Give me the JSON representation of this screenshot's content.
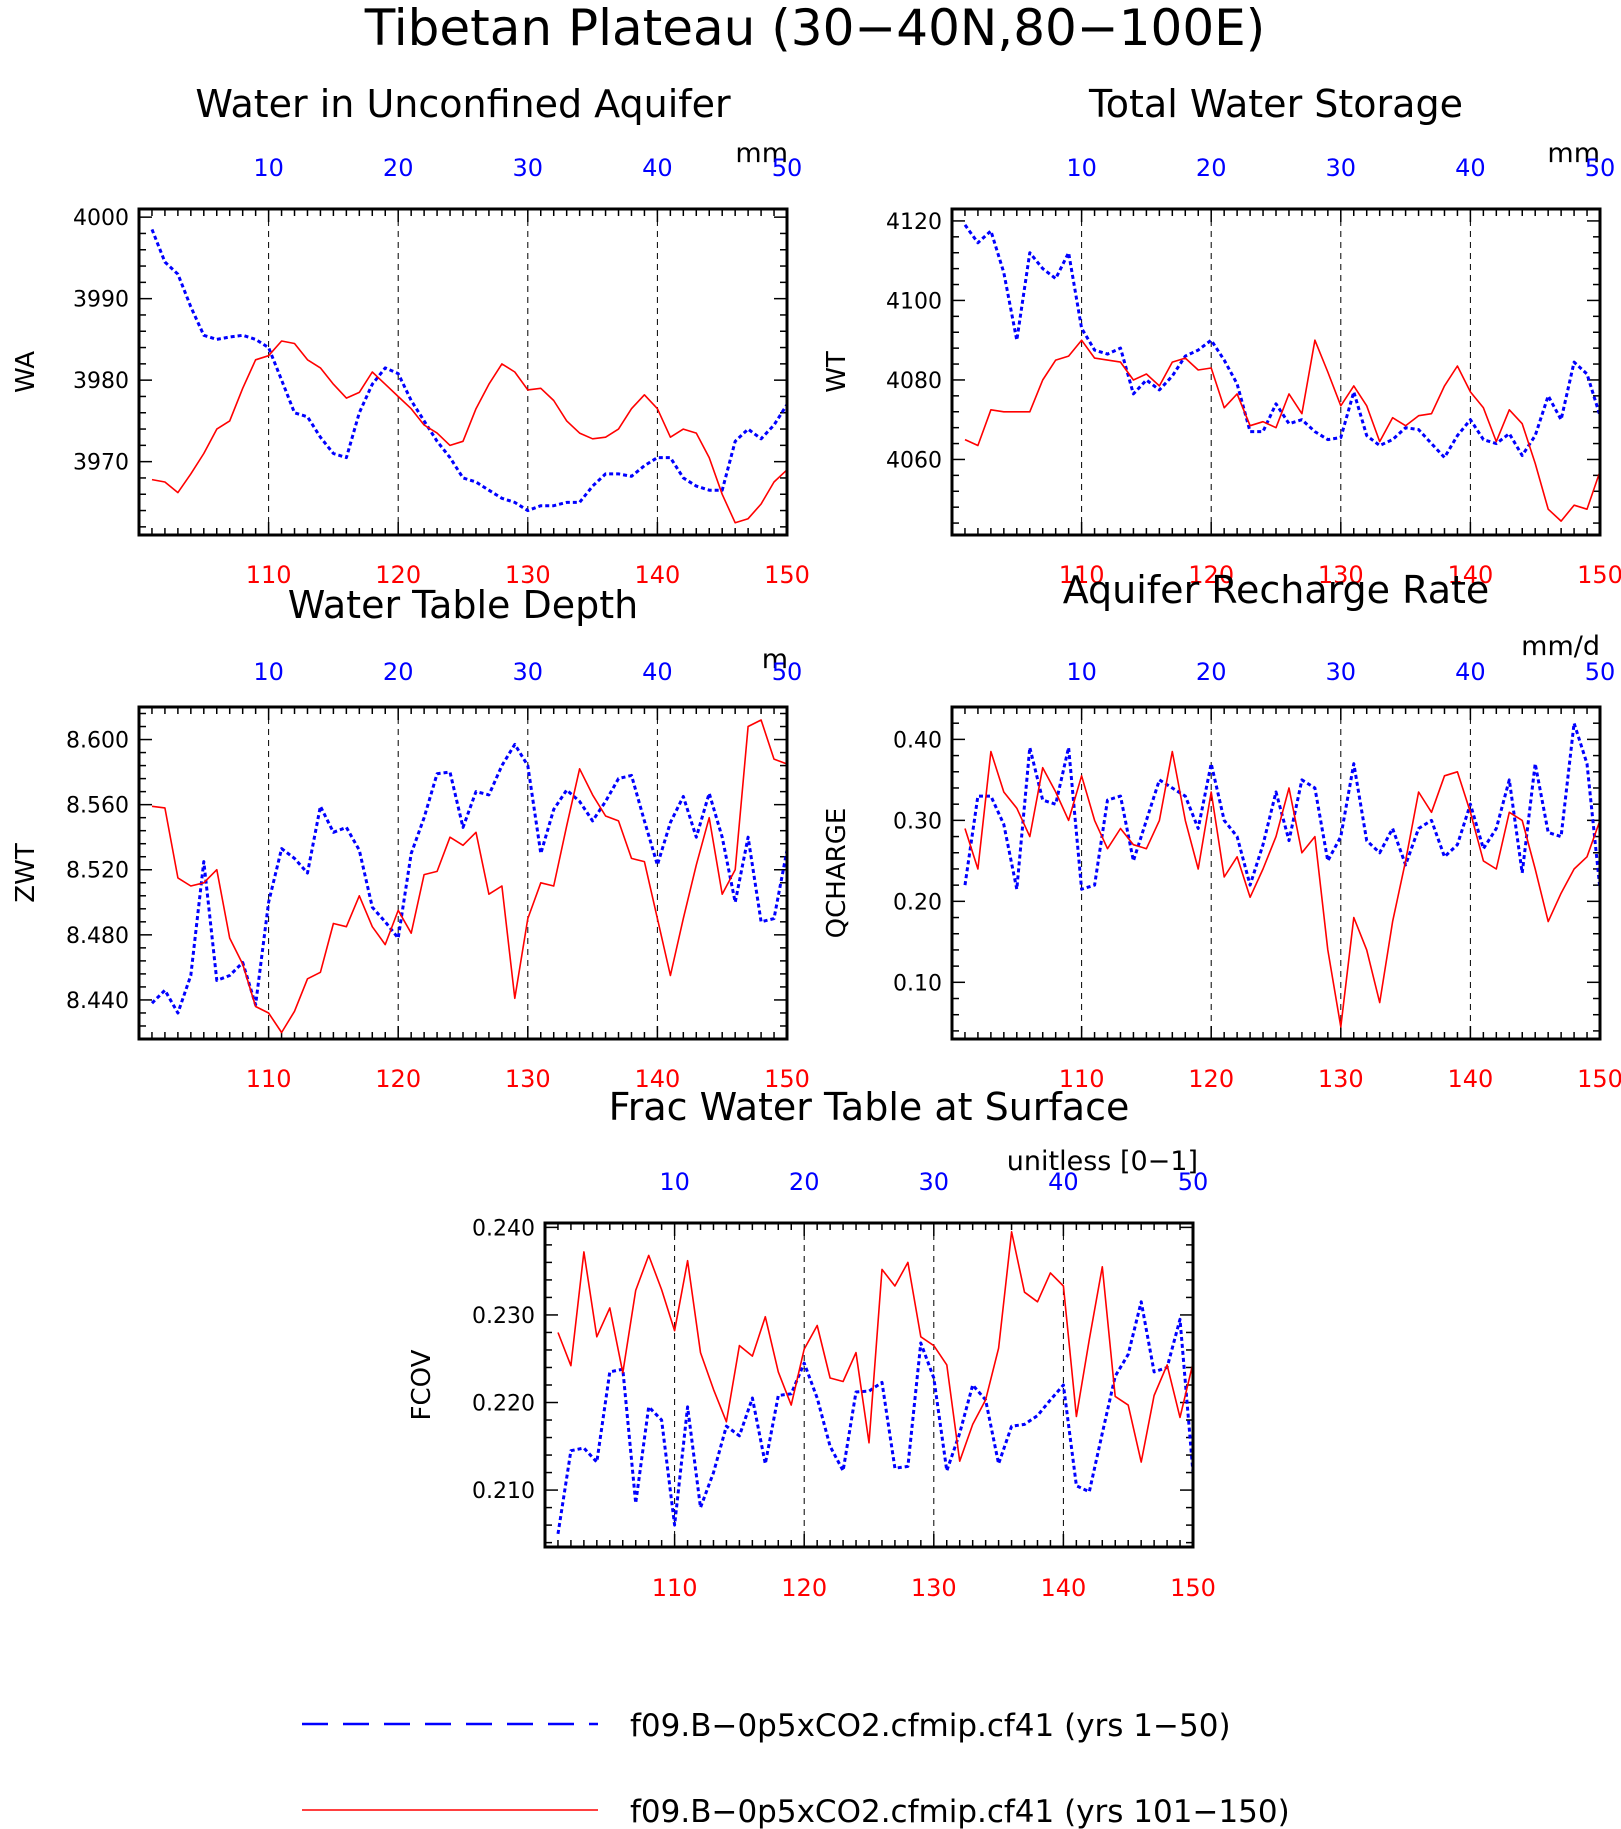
{
  "figure_title": "Tibetan Plateau (30−40N,80−100E)",
  "legend": {
    "series1": "f09.B−0p5xCO2.cfmip.cf41 (yrs 1−50)",
    "series2": "f09.B−0p5xCO2.cfmip.cf41 (yrs 101−150)"
  },
  "colors": {
    "series1": "#0000ff",
    "series2": "#ff0000",
    "axes": "#000000"
  },
  "chart_data": [
    {
      "type": "line",
      "title": "Water in Unconfined Aquifer",
      "units": "mm",
      "ylabel": "WA",
      "ylim": [
        3961,
        4001
      ],
      "yticks": [
        3970,
        3980,
        3990,
        4000
      ],
      "ytick_labels": [
        "3970",
        "3980",
        "3990",
        "4000"
      ],
      "top_xticks": [
        "10",
        "20",
        "30",
        "40",
        "50"
      ],
      "bottom_xticks": [
        "110",
        "120",
        "130",
        "140",
        "150"
      ],
      "series": [
        {
          "values": [
            3998.5,
            3994.5,
            3993,
            3989,
            3985.5,
            3985,
            3985.3,
            3985.5,
            3985,
            3984,
            3980,
            3976,
            3975.5,
            3973,
            3971,
            3970.5,
            3976,
            3979.5,
            3981.5,
            3980.8,
            3977.5,
            3975,
            3972.5,
            3970.5,
            3968,
            3967.5,
            3966.5,
            3965.5,
            3965,
            3964,
            3964.6,
            3964.6,
            3965,
            3965,
            3967,
            3968.5,
            3968.5,
            3968.2,
            3969.5,
            3970.5,
            3970.5,
            3968,
            3967,
            3966.5,
            3966.5,
            3972.5,
            3974,
            3972.8,
            3974.5,
            3977
          ]
        },
        {
          "values": [
            3967.8,
            3967.5,
            3966.2,
            3968.5,
            3971,
            3974,
            3975,
            3979,
            3982.5,
            3983,
            3984.8,
            3984.5,
            3982.5,
            3981.5,
            3979.5,
            3977.8,
            3978.5,
            3981,
            3979.5,
            3978,
            3976.5,
            3974.5,
            3973.5,
            3972,
            3972.5,
            3976.5,
            3979.5,
            3982,
            3981,
            3978.8,
            3979,
            3977.5,
            3975,
            3973.5,
            3972.8,
            3973,
            3974,
            3976.5,
            3978.2,
            3976.5,
            3973,
            3974,
            3973.5,
            3970.5,
            3966,
            3962.5,
            3963,
            3964.8,
            3967.5,
            3969
          ]
        }
      ]
    },
    {
      "type": "line",
      "title": "Total Water Storage",
      "units": "mm",
      "ylabel": "WT",
      "ylim": [
        4041,
        4123
      ],
      "yticks": [
        4060,
        4080,
        4100,
        4120
      ],
      "ytick_labels": [
        "4060",
        "4080",
        "4100",
        "4120"
      ],
      "top_xticks": [
        "10",
        "20",
        "30",
        "40",
        "50"
      ],
      "bottom_xticks": [
        "110",
        "120",
        "130",
        "140",
        "150"
      ],
      "series": [
        {
          "values": [
            4119,
            4114.5,
            4117.5,
            4107,
            4090,
            4112,
            4108,
            4105.5,
            4112,
            4093,
            4087.5,
            4086.5,
            4088,
            4076.5,
            4080,
            4077.5,
            4081,
            4086,
            4087.5,
            4090,
            4085,
            4079,
            4067,
            4067,
            4074,
            4069,
            4070,
            4067,
            4065,
            4065.5,
            4077,
            4066,
            4063.5,
            4065,
            4068,
            4067.5,
            4064,
            4060.5,
            4066,
            4070,
            4065,
            4064,
            4066.5,
            4061,
            4066,
            4076,
            4070,
            4084.5,
            4081.5,
            4071
          ]
        },
        {
          "values": [
            4065,
            4063.5,
            4072.5,
            4072,
            4072,
            4072,
            4080,
            4085,
            4086,
            4090,
            4085.5,
            4085,
            4084.5,
            4080,
            4081.5,
            4078.5,
            4084.5,
            4085.5,
            4082.5,
            4083,
            4073,
            4076.5,
            4068.5,
            4069.5,
            4068,
            4076.5,
            4071.5,
            4090,
            4082,
            4073.5,
            4078.5,
            4073.5,
            4064.5,
            4070.5,
            4068.5,
            4071,
            4071.5,
            4078.5,
            4083.5,
            4077,
            4073,
            4064.5,
            4072.5,
            4069,
            4059,
            4047.5,
            4044.5,
            4048.5,
            4047.5,
            4057
          ]
        }
      ]
    },
    {
      "type": "line",
      "title": "Water Table Depth",
      "units": "m",
      "ylabel": "ZWT",
      "ylim": [
        8.416,
        8.62
      ],
      "yticks": [
        8.44,
        8.48,
        8.52,
        8.56,
        8.6
      ],
      "ytick_labels": [
        "8.440",
        "8.480",
        "8.520",
        "8.560",
        "8.600"
      ],
      "top_xticks": [
        "10",
        "20",
        "30",
        "40",
        "50"
      ],
      "bottom_xticks": [
        "110",
        "120",
        "130",
        "140",
        "150"
      ],
      "series": [
        {
          "values": [
            8.438,
            8.446,
            8.432,
            8.455,
            8.525,
            8.452,
            8.455,
            8.463,
            8.437,
            8.5,
            8.533,
            8.527,
            8.518,
            8.559,
            8.543,
            8.546,
            8.532,
            8.497,
            8.488,
            8.478,
            8.53,
            8.552,
            8.579,
            8.58,
            8.546,
            8.568,
            8.566,
            8.584,
            8.597,
            8.584,
            8.53,
            8.557,
            8.569,
            8.562,
            8.55,
            8.562,
            8.576,
            8.578,
            8.55,
            8.523,
            8.549,
            8.565,
            8.54,
            8.567,
            8.54,
            8.5,
            8.54,
            8.488,
            8.49,
            8.532
          ]
        },
        {
          "values": [
            8.559,
            8.558,
            8.515,
            8.51,
            8.512,
            8.52,
            8.478,
            8.462,
            8.436,
            8.432,
            8.42,
            8.433,
            8.453,
            8.457,
            8.487,
            8.485,
            8.504,
            8.485,
            8.474,
            8.495,
            8.481,
            8.517,
            8.519,
            8.54,
            8.535,
            8.543,
            8.505,
            8.51,
            8.441,
            8.49,
            8.512,
            8.51,
            8.547,
            8.582,
            8.566,
            8.553,
            8.55,
            8.527,
            8.525,
            8.49,
            8.455,
            8.49,
            8.523,
            8.552,
            8.505,
            8.52,
            8.608,
            8.612,
            8.588,
            8.585
          ]
        }
      ]
    },
    {
      "type": "line",
      "title": "Aquifer Recharge Rate",
      "units": "mm/d",
      "ylabel": "QCHARGE",
      "ylim": [
        0.03,
        0.44
      ],
      "yticks": [
        0.1,
        0.2,
        0.3,
        0.4
      ],
      "ytick_labels": [
        "0.10",
        "0.20",
        "0.30",
        "0.40"
      ],
      "top_xticks": [
        "10",
        "20",
        "30",
        "40",
        "50"
      ],
      "bottom_xticks": [
        "110",
        "120",
        "130",
        "140",
        "150"
      ],
      "series": [
        {
          "values": [
            0.22,
            0.33,
            0.33,
            0.295,
            0.215,
            0.39,
            0.325,
            0.32,
            0.39,
            0.215,
            0.22,
            0.325,
            0.33,
            0.25,
            0.3,
            0.35,
            0.34,
            0.33,
            0.29,
            0.37,
            0.3,
            0.28,
            0.22,
            0.27,
            0.335,
            0.275,
            0.35,
            0.34,
            0.25,
            0.28,
            0.37,
            0.275,
            0.26,
            0.29,
            0.245,
            0.29,
            0.3,
            0.255,
            0.27,
            0.32,
            0.265,
            0.29,
            0.35,
            0.235,
            0.37,
            0.285,
            0.28,
            0.42,
            0.37,
            0.215
          ]
        },
        {
          "values": [
            0.29,
            0.24,
            0.385,
            0.335,
            0.315,
            0.28,
            0.365,
            0.335,
            0.3,
            0.355,
            0.3,
            0.265,
            0.29,
            0.27,
            0.265,
            0.3,
            0.385,
            0.3,
            0.24,
            0.335,
            0.23,
            0.255,
            0.205,
            0.24,
            0.28,
            0.34,
            0.26,
            0.28,
            0.14,
            0.045,
            0.18,
            0.14,
            0.075,
            0.175,
            0.25,
            0.335,
            0.31,
            0.355,
            0.36,
            0.31,
            0.25,
            0.24,
            0.31,
            0.3,
            0.24,
            0.175,
            0.21,
            0.24,
            0.255,
            0.3
          ]
        }
      ]
    },
    {
      "type": "line",
      "title": "Frac Water Table at Surface",
      "units": "unitless [0−1]",
      "ylabel": "FCOV",
      "ylim": [
        0.2035,
        0.2405
      ],
      "yticks": [
        0.21,
        0.22,
        0.23,
        0.24
      ],
      "ytick_labels": [
        "0.210",
        "0.220",
        "0.230",
        "0.240"
      ],
      "top_xticks": [
        "10",
        "20",
        "30",
        "40",
        "50"
      ],
      "bottom_xticks": [
        "110",
        "120",
        "130",
        "140",
        "150"
      ],
      "series": [
        {
          "values": [
            0.205,
            0.2145,
            0.2148,
            0.2132,
            0.2235,
            0.2238,
            0.2085,
            0.2195,
            0.218,
            0.206,
            0.2195,
            0.208,
            0.212,
            0.2173,
            0.2162,
            0.2205,
            0.213,
            0.2208,
            0.221,
            0.2245,
            0.2205,
            0.215,
            0.2122,
            0.2212,
            0.2213,
            0.2223,
            0.2125,
            0.2127,
            0.2268,
            0.2228,
            0.2122,
            0.2165,
            0.222,
            0.2203,
            0.213,
            0.2173,
            0.2175,
            0.2185,
            0.2203,
            0.222,
            0.2105,
            0.2098,
            0.2165,
            0.223,
            0.2255,
            0.2315,
            0.2235,
            0.224,
            0.2295,
            0.212
          ]
        },
        {
          "values": [
            0.228,
            0.2242,
            0.2372,
            0.2275,
            0.2308,
            0.2234,
            0.2328,
            0.2368,
            0.2329,
            0.2282,
            0.2362,
            0.2257,
            0.2215,
            0.2178,
            0.2265,
            0.2253,
            0.2298,
            0.2235,
            0.2197,
            0.2261,
            0.2288,
            0.2228,
            0.2224,
            0.2257,
            0.2154,
            0.2352,
            0.2333,
            0.236,
            0.2275,
            0.2265,
            0.2243,
            0.2133,
            0.2175,
            0.2203,
            0.2262,
            0.2395,
            0.2326,
            0.2315,
            0.2348,
            0.2333,
            0.2184,
            0.2272,
            0.2355,
            0.2207,
            0.2197,
            0.2132,
            0.2208,
            0.2243,
            0.2183,
            0.2245
          ]
        }
      ]
    }
  ]
}
